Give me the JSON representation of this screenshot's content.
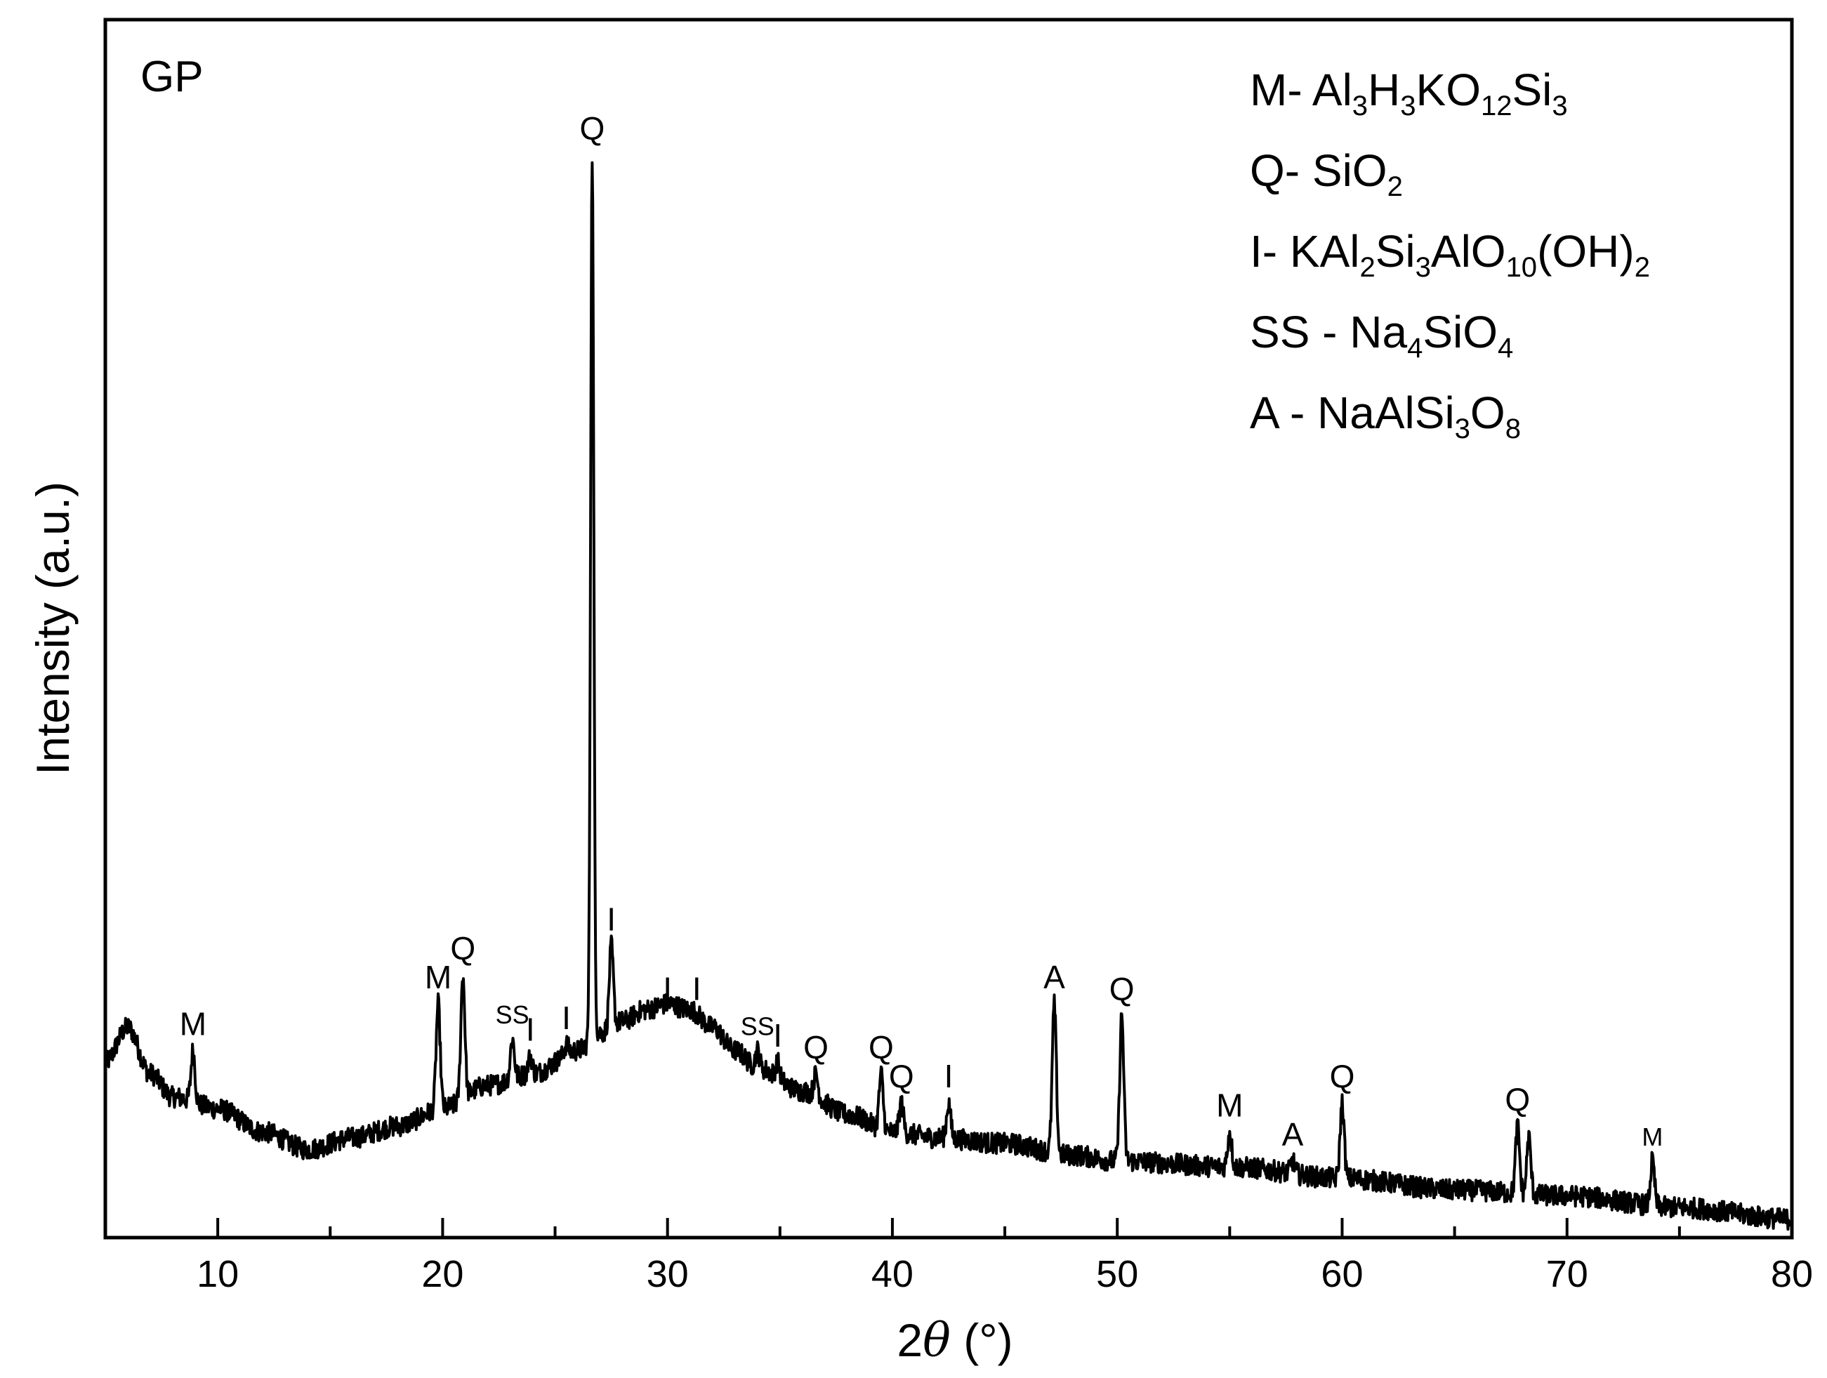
{
  "chart_data": {
    "type": "line",
    "panel_label": "GP",
    "xlabel_parts": [
      "2",
      "θ",
      " (°)"
    ],
    "ylabel": "Intensity (a.u.)",
    "xlim": [
      5,
      80
    ],
    "ylim": [
      0,
      100
    ],
    "x_ticks": [
      10,
      20,
      30,
      40,
      50,
      60,
      70,
      80
    ],
    "x_minor_ticks": [
      5,
      15,
      25,
      35,
      45,
      55,
      65,
      75
    ],
    "y_ticks_shown": false,
    "grid": false,
    "legend_position": "top-right",
    "line_color": "#000000",
    "baseline": [
      [
        5,
        14
      ],
      [
        6,
        17
      ],
      [
        7,
        13
      ],
      [
        8,
        11
      ],
      [
        10,
        10
      ],
      [
        12,
        8
      ],
      [
        14,
        6.5
      ],
      [
        16,
        7.5
      ],
      [
        18,
        8.5
      ],
      [
        20,
        10
      ],
      [
        22,
        12
      ],
      [
        24,
        13
      ],
      [
        26,
        15
      ],
      [
        27,
        16.5
      ],
      [
        28,
        17.5
      ],
      [
        29,
        18.5
      ],
      [
        30,
        19
      ],
      [
        31,
        18.5
      ],
      [
        32,
        17
      ],
      [
        33,
        15
      ],
      [
        34,
        13.5
      ],
      [
        36,
        11.5
      ],
      [
        38,
        9.5
      ],
      [
        40,
        8
      ],
      [
        42,
        7.5
      ],
      [
        45,
        7
      ],
      [
        48,
        6
      ],
      [
        50,
        5.5
      ],
      [
        55,
        5
      ],
      [
        60,
        4
      ],
      [
        65,
        3
      ],
      [
        70,
        2.5
      ],
      [
        75,
        1.5
      ],
      [
        80,
        0.5
      ]
    ],
    "peaks": [
      {
        "x": 8.9,
        "y": 15,
        "label": "M"
      },
      {
        "x": 19.8,
        "y": 19,
        "label": "M"
      },
      {
        "x": 20.9,
        "y": 21.5,
        "label": "Q"
      },
      {
        "x": 23.1,
        "y": 16,
        "label": "SS"
      },
      {
        "x": 23.9,
        "y": 14.5,
        "label": "I"
      },
      {
        "x": 25.5,
        "y": 15.5,
        "label": "I"
      },
      {
        "x": 26.65,
        "y": 92,
        "label": "Q"
      },
      {
        "x": 27.5,
        "y": 24,
        "label": "I"
      },
      {
        "x": 30.0,
        "y": 18,
        "label": "I"
      },
      {
        "x": 31.3,
        "y": 18,
        "label": "I"
      },
      {
        "x": 34.0,
        "y": 15,
        "label": "SS"
      },
      {
        "x": 34.9,
        "y": 14,
        "label": "I"
      },
      {
        "x": 36.6,
        "y": 13,
        "label": "Q"
      },
      {
        "x": 39.5,
        "y": 13,
        "label": "Q"
      },
      {
        "x": 40.4,
        "y": 10.5,
        "label": "Q"
      },
      {
        "x": 42.5,
        "y": 10.5,
        "label": "I"
      },
      {
        "x": 47.2,
        "y": 19,
        "label": "A"
      },
      {
        "x": 50.2,
        "y": 18,
        "label": "Q"
      },
      {
        "x": 55.0,
        "y": 8,
        "label": "M"
      },
      {
        "x": 57.8,
        "y": 5.5,
        "label": "A"
      },
      {
        "x": 60.0,
        "y": 10.5,
        "label": "Q"
      },
      {
        "x": 67.8,
        "y": 8.5,
        "label": "Q"
      },
      {
        "x": 68.3,
        "y": 7.5,
        "label": ""
      },
      {
        "x": 73.8,
        "y": 5.5,
        "label": "M"
      }
    ],
    "legend": [
      {
        "prefix": "M- ",
        "parts": [
          [
            "Al",
            ""
          ],
          [
            "3",
            "sub"
          ],
          [
            "H",
            ""
          ],
          [
            "3",
            "sub"
          ],
          [
            "KO",
            ""
          ],
          [
            "12",
            "sub"
          ],
          [
            "Si",
            ""
          ],
          [
            "3",
            "sub"
          ]
        ]
      },
      {
        "prefix": "Q- ",
        "parts": [
          [
            "SiO",
            ""
          ],
          [
            "2",
            "sub"
          ]
        ]
      },
      {
        "prefix": "I- ",
        "parts": [
          [
            "KAl",
            ""
          ],
          [
            "2",
            "sub"
          ],
          [
            "Si",
            ""
          ],
          [
            "3",
            "sub"
          ],
          [
            "AlO",
            ""
          ],
          [
            "10",
            "sub"
          ],
          [
            "(OH)",
            ""
          ],
          [
            "2",
            "sub"
          ]
        ]
      },
      {
        "prefix": "SS - ",
        "parts": [
          [
            "Na",
            ""
          ],
          [
            "4",
            "sub"
          ],
          [
            "SiO",
            ""
          ],
          [
            "4",
            "sub"
          ]
        ]
      },
      {
        "prefix": "A - ",
        "parts": [
          [
            "NaAlSi",
            ""
          ],
          [
            "3",
            "sub"
          ],
          [
            "O",
            ""
          ],
          [
            "8",
            "sub"
          ]
        ]
      }
    ]
  }
}
